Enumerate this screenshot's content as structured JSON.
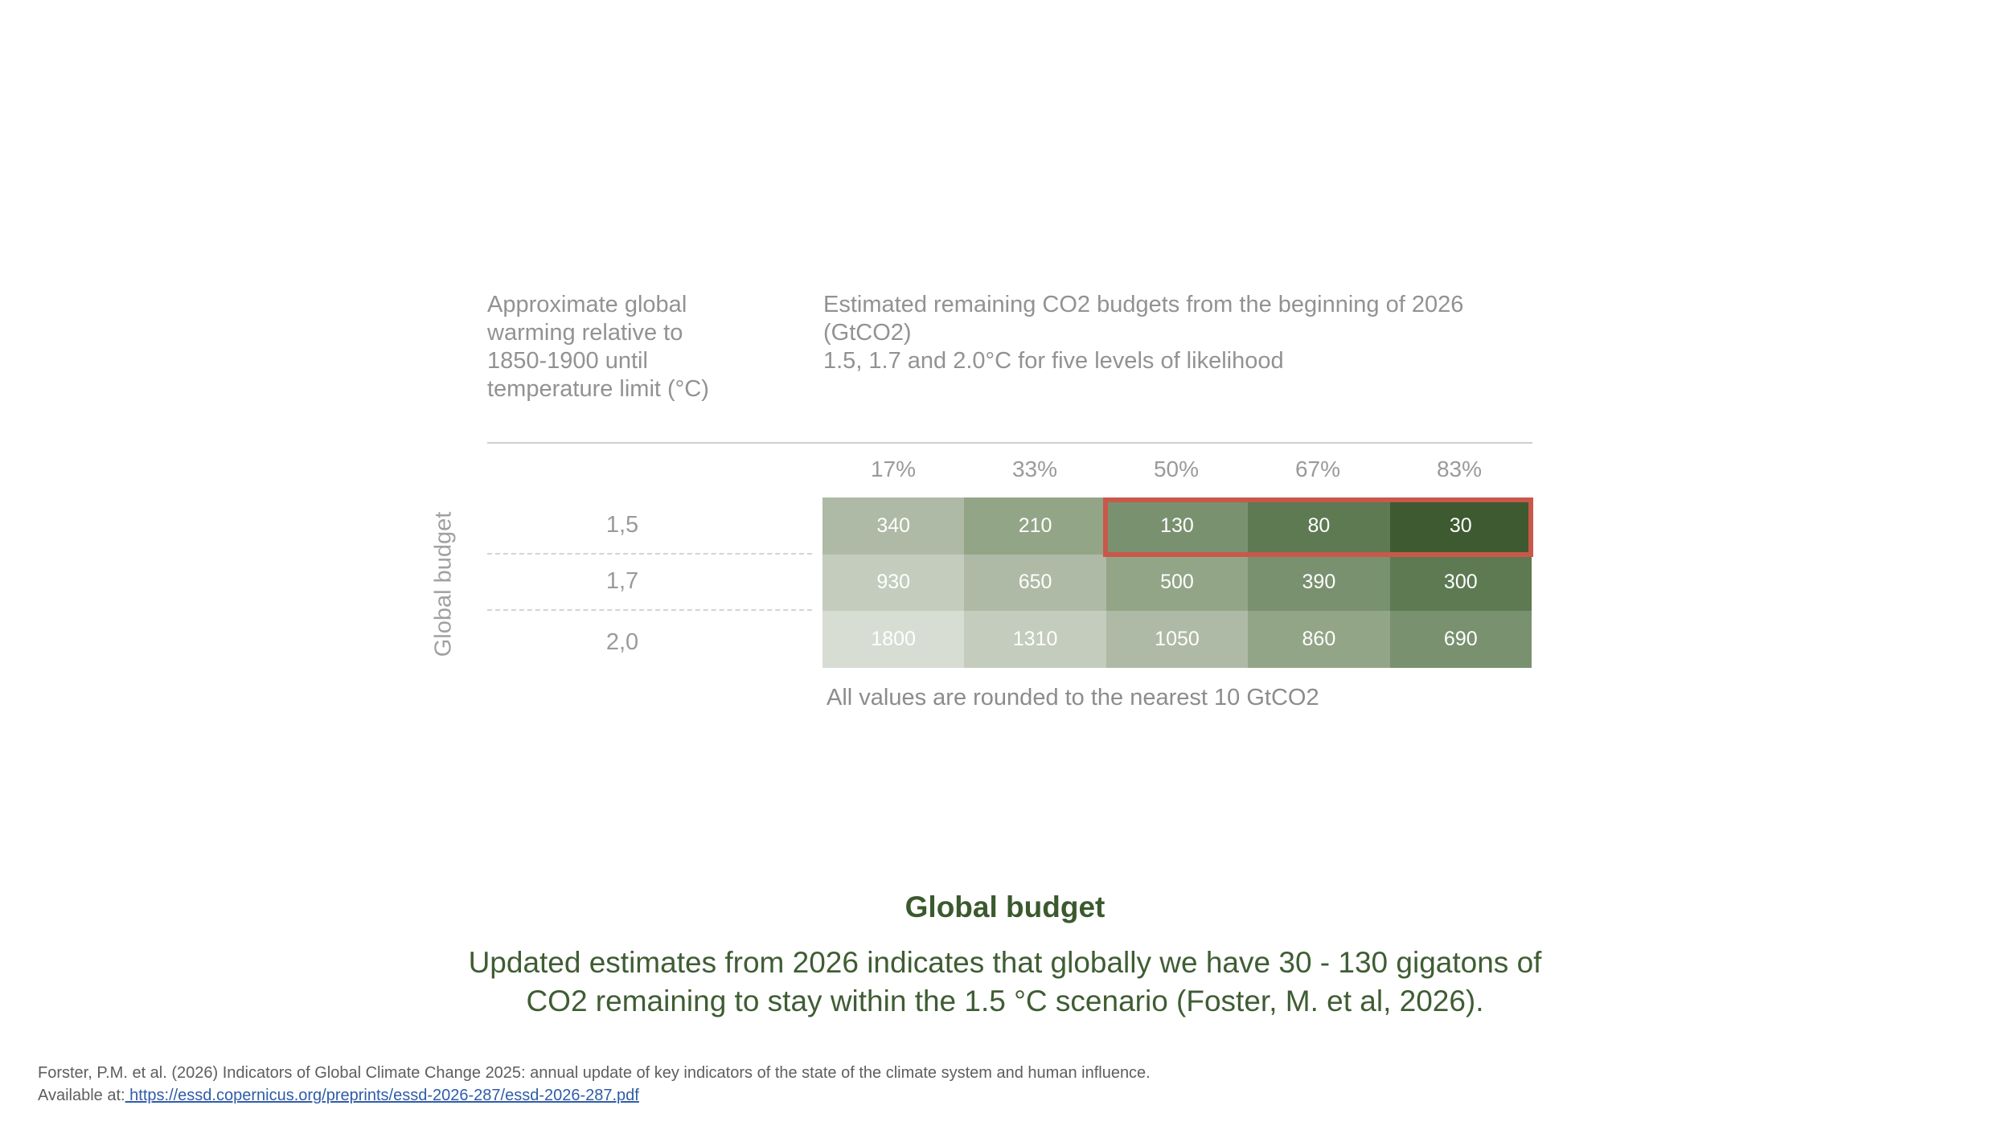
{
  "chart_data": {
    "type": "heatmap",
    "title_left": "Approximate global\nwarming relative to\n1850-1900 until\ntemperature limit (°C)",
    "title_right_lines": [
      "Estimated remaining CO2 budgets  from the beginning of 2026",
      "(GtCO2)",
      "1.5, 1.7 and 2.0°C for five levels of likelihood"
    ],
    "ylabel": "Global budget",
    "columns": [
      "17%",
      "33%",
      "50%",
      "67%",
      "83%"
    ],
    "rows": [
      "1,5",
      "1,7",
      "2,0"
    ],
    "values": [
      [
        340,
        210,
        130,
        80,
        30
      ],
      [
        930,
        650,
        500,
        390,
        300
      ],
      [
        1800,
        1310,
        1050,
        860,
        690
      ]
    ],
    "cell_colors": [
      [
        "#aebaa5",
        "#93a587",
        "#7a9170",
        "#5d7a52",
        "#3e5a30"
      ],
      [
        "#c4ccbd",
        "#aebaa5",
        "#93a587",
        "#7a9170",
        "#5d7a52"
      ],
      [
        "#d8ddd4",
        "#c4ccbd",
        "#aebaa5",
        "#93a587",
        "#7a9170"
      ]
    ],
    "highlight": {
      "row": 0,
      "from_col": 2,
      "to_col": 4,
      "color": "#c9584a"
    },
    "note": "All values are rounded to the nearest 10 GtCO2"
  },
  "summary": {
    "title": "Global budget",
    "lines": [
      "Updated estimates from 2026 indicates that globally we have 30 - 130 gigatons of",
      "CO2 remaining to stay within the 1.5 °C scenario (Foster, M. et al, 2026)."
    ]
  },
  "reference": {
    "citation": "Forster, P.M. et al. (2026) Indicators of Global Climate Change 2025: annual update of key indicators of the state of the climate system and human influence.",
    "available_label": "Available at:",
    "url": " https://essd.copernicus.org/preprints/essd-2026-287/essd-2026-287.pdf"
  }
}
